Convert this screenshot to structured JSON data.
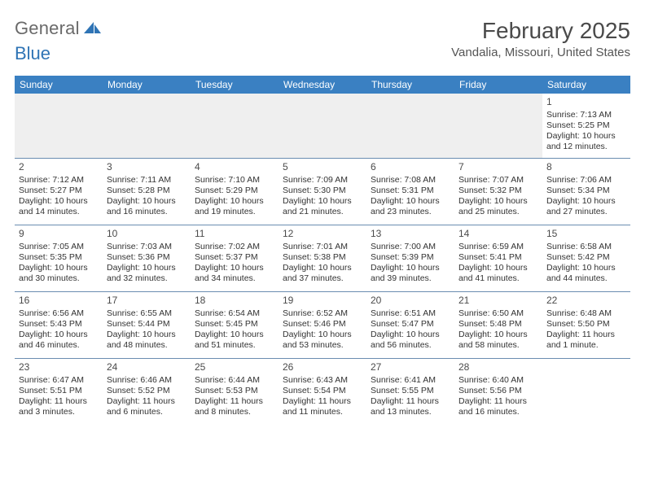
{
  "brand": {
    "word1": "General",
    "word2": "Blue"
  },
  "title": "February 2025",
  "location": "Vandalia, Missouri, United States",
  "colors": {
    "header_bg": "#3a80c2",
    "header_text": "#ffffff",
    "row_divider": "#6a8db0",
    "blank_bg": "#efefef",
    "text": "#333333",
    "brand_gray": "#6a6a6a",
    "brand_blue": "#2f74b5"
  },
  "typography": {
    "title_fontsize": 28,
    "location_fontsize": 15,
    "day_header_fontsize": 12,
    "cell_fontsize": 10.5
  },
  "day_headers": [
    "Sunday",
    "Monday",
    "Tuesday",
    "Wednesday",
    "Thursday",
    "Friday",
    "Saturday"
  ],
  "weeks": [
    [
      null,
      null,
      null,
      null,
      null,
      null,
      {
        "n": "1",
        "sunrise": "7:13 AM",
        "sunset": "5:25 PM",
        "daylight": "10 hours and 12 minutes."
      }
    ],
    [
      {
        "n": "2",
        "sunrise": "7:12 AM",
        "sunset": "5:27 PM",
        "daylight": "10 hours and 14 minutes."
      },
      {
        "n": "3",
        "sunrise": "7:11 AM",
        "sunset": "5:28 PM",
        "daylight": "10 hours and 16 minutes."
      },
      {
        "n": "4",
        "sunrise": "7:10 AM",
        "sunset": "5:29 PM",
        "daylight": "10 hours and 19 minutes."
      },
      {
        "n": "5",
        "sunrise": "7:09 AM",
        "sunset": "5:30 PM",
        "daylight": "10 hours and 21 minutes."
      },
      {
        "n": "6",
        "sunrise": "7:08 AM",
        "sunset": "5:31 PM",
        "daylight": "10 hours and 23 minutes."
      },
      {
        "n": "7",
        "sunrise": "7:07 AM",
        "sunset": "5:32 PM",
        "daylight": "10 hours and 25 minutes."
      },
      {
        "n": "8",
        "sunrise": "7:06 AM",
        "sunset": "5:34 PM",
        "daylight": "10 hours and 27 minutes."
      }
    ],
    [
      {
        "n": "9",
        "sunrise": "7:05 AM",
        "sunset": "5:35 PM",
        "daylight": "10 hours and 30 minutes."
      },
      {
        "n": "10",
        "sunrise": "7:03 AM",
        "sunset": "5:36 PM",
        "daylight": "10 hours and 32 minutes."
      },
      {
        "n": "11",
        "sunrise": "7:02 AM",
        "sunset": "5:37 PM",
        "daylight": "10 hours and 34 minutes."
      },
      {
        "n": "12",
        "sunrise": "7:01 AM",
        "sunset": "5:38 PM",
        "daylight": "10 hours and 37 minutes."
      },
      {
        "n": "13",
        "sunrise": "7:00 AM",
        "sunset": "5:39 PM",
        "daylight": "10 hours and 39 minutes."
      },
      {
        "n": "14",
        "sunrise": "6:59 AM",
        "sunset": "5:41 PM",
        "daylight": "10 hours and 41 minutes."
      },
      {
        "n": "15",
        "sunrise": "6:58 AM",
        "sunset": "5:42 PM",
        "daylight": "10 hours and 44 minutes."
      }
    ],
    [
      {
        "n": "16",
        "sunrise": "6:56 AM",
        "sunset": "5:43 PM",
        "daylight": "10 hours and 46 minutes."
      },
      {
        "n": "17",
        "sunrise": "6:55 AM",
        "sunset": "5:44 PM",
        "daylight": "10 hours and 48 minutes."
      },
      {
        "n": "18",
        "sunrise": "6:54 AM",
        "sunset": "5:45 PM",
        "daylight": "10 hours and 51 minutes."
      },
      {
        "n": "19",
        "sunrise": "6:52 AM",
        "sunset": "5:46 PM",
        "daylight": "10 hours and 53 minutes."
      },
      {
        "n": "20",
        "sunrise": "6:51 AM",
        "sunset": "5:47 PM",
        "daylight": "10 hours and 56 minutes."
      },
      {
        "n": "21",
        "sunrise": "6:50 AM",
        "sunset": "5:48 PM",
        "daylight": "10 hours and 58 minutes."
      },
      {
        "n": "22",
        "sunrise": "6:48 AM",
        "sunset": "5:50 PM",
        "daylight": "11 hours and 1 minute."
      }
    ],
    [
      {
        "n": "23",
        "sunrise": "6:47 AM",
        "sunset": "5:51 PM",
        "daylight": "11 hours and 3 minutes."
      },
      {
        "n": "24",
        "sunrise": "6:46 AM",
        "sunset": "5:52 PM",
        "daylight": "11 hours and 6 minutes."
      },
      {
        "n": "25",
        "sunrise": "6:44 AM",
        "sunset": "5:53 PM",
        "daylight": "11 hours and 8 minutes."
      },
      {
        "n": "26",
        "sunrise": "6:43 AM",
        "sunset": "5:54 PM",
        "daylight": "11 hours and 11 minutes."
      },
      {
        "n": "27",
        "sunrise": "6:41 AM",
        "sunset": "5:55 PM",
        "daylight": "11 hours and 13 minutes."
      },
      {
        "n": "28",
        "sunrise": "6:40 AM",
        "sunset": "5:56 PM",
        "daylight": "11 hours and 16 minutes."
      },
      null
    ]
  ],
  "labels": {
    "sunrise": "Sunrise:",
    "sunset": "Sunset:",
    "daylight": "Daylight:"
  }
}
